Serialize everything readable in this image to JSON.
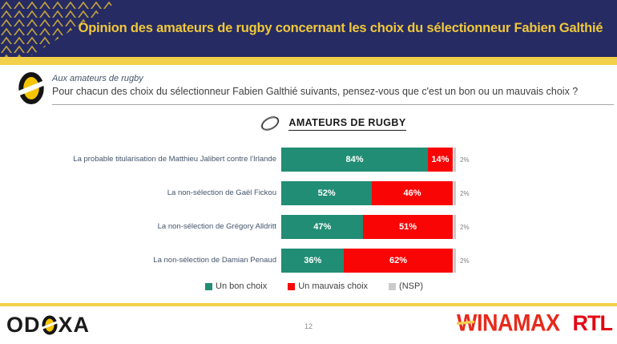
{
  "header": {
    "title": "Opinion des amateurs de rugby concernant les choix du sélectionneur Fabien Galthié"
  },
  "question": {
    "kicker": "Aux amateurs de rugby",
    "text": "Pour chacun des choix du sélectionneur Fabien Galthié suivants, pensez-vous que c'est un bon ou un mauvais choix ?"
  },
  "chart_data": {
    "type": "bar",
    "orientation": "horizontal_stacked",
    "title": "AMATEURS DE RUGBY",
    "categories": [
      "La probable titularisation de Matthieu Jalibert contre l'Irlande",
      "La non-sélection de Gaël Fickou",
      "La non-sélection de Grégory Alldritt",
      "La non-sélection de Damian Penaud"
    ],
    "series": [
      {
        "name": "Un bon choix",
        "color": "#218D74",
        "values": [
          84,
          52,
          47,
          36
        ]
      },
      {
        "name": "Un mauvais choix",
        "color": "#FA0505",
        "values": [
          14,
          46,
          51,
          62
        ]
      },
      {
        "name": "(NSP)",
        "color": "#CBCBCB",
        "values": [
          2,
          2,
          2,
          2
        ]
      }
    ],
    "xlim": [
      0,
      100
    ],
    "value_suffix": "%",
    "grid": false,
    "legend_position": "bottom"
  },
  "footer": {
    "odoxa_left": "OD",
    "odoxa_right": "XA",
    "winamax": "WINAMAX",
    "rtl": "RTL",
    "page_number": "12"
  },
  "colors": {
    "header_bg": "#262B63",
    "accent_gold": "#F2D04A",
    "title_gold": "#F0C83B",
    "chevron_gold": "#CBA93A",
    "winamax_red": "#E62A1B",
    "rtl_red": "#E30613",
    "label_navy": "#44546A",
    "text_dark": "#3F3F3F"
  }
}
